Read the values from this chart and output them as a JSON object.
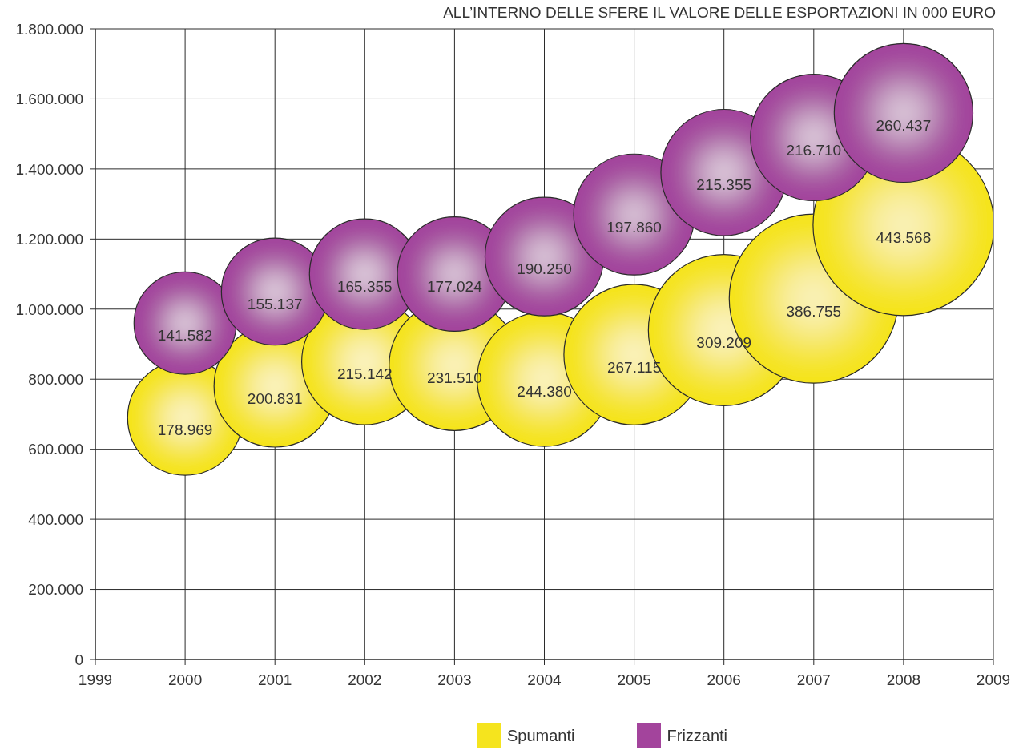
{
  "chart_data": {
    "type": "bubble",
    "title": "ALL’INTERNO DELLE SFERE IL VALORE DELLE ESPORTAZIONI IN 000 EURO",
    "x": [
      2000,
      2001,
      2002,
      2003,
      2004,
      2005,
      2006,
      2007,
      2008
    ],
    "series": [
      {
        "name": "Spumanti",
        "color": "#f5e41e",
        "values": [
          690000,
          780000,
          850000,
          840000,
          800000,
          870000,
          940000,
          1030000,
          1240000
        ],
        "sizes": [
          178969,
          200831,
          215142,
          231510,
          244380,
          267115,
          309209,
          386755,
          443568
        ],
        "value_labels": [
          "178.969",
          "200.831",
          "215.142",
          "231.510",
          "244.380",
          "267.115",
          "309.209",
          "386.755",
          "443.568"
        ]
      },
      {
        "name": "Frizzanti",
        "color": "#a3449c",
        "values": [
          960000,
          1050000,
          1100000,
          1100000,
          1150000,
          1270000,
          1390000,
          1490000,
          1560000
        ],
        "sizes": [
          141582,
          155137,
          165355,
          177024,
          190250,
          197860,
          215355,
          216710,
          260437
        ],
        "value_labels": [
          "141.582",
          "155.137",
          "165.355",
          "177.024",
          "190.250",
          "197.860",
          "215.355",
          "216.710",
          "260.437"
        ]
      }
    ],
    "xlim": [
      1999,
      2009
    ],
    "xticks": [
      1999,
      2000,
      2001,
      2002,
      2003,
      2004,
      2005,
      2006,
      2007,
      2008,
      2009
    ],
    "ylim": [
      0,
      1800000
    ],
    "yticks": [
      0,
      {
        "value": 200000,
        "label": "200.000"
      },
      {
        "value": 400000,
        "label": "400.000"
      },
      {
        "value": 600000,
        "label": "600.000"
      },
      {
        "value": 800000,
        "label": "800.000"
      },
      {
        "value": 1000000,
        "label": "1.000.000"
      },
      {
        "value": 1200000,
        "label": "1.200.000"
      },
      {
        "value": 1400000,
        "label": "1.400.000"
      },
      {
        "value": 1600000,
        "label": "1.600.000"
      },
      {
        "value": 1800000,
        "label": "1.800.000"
      }
    ],
    "grid": true,
    "legend": "bottom",
    "marker": "circle"
  }
}
